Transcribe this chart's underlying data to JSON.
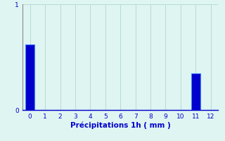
{
  "categories": [
    0,
    1,
    2,
    3,
    4,
    5,
    6,
    7,
    8,
    9,
    10,
    11,
    12
  ],
  "values": [
    0.62,
    0,
    0,
    0,
    0,
    0,
    0,
    0,
    0,
    0,
    0,
    0.35,
    0
  ],
  "bar_color": "#0000cc",
  "bar_edge_color": "#4488ff",
  "background_color": "#dff5f2",
  "grid_color": "#b0d8cc",
  "text_color": "#0000cc",
  "axis_color": "#888888",
  "xlabel": "Précipitations 1h ( mm )",
  "ylim": [
    0,
    1.0
  ],
  "xlim": [
    -0.5,
    12.5
  ],
  "yticks": [
    0,
    1
  ],
  "xticks": [
    0,
    1,
    2,
    3,
    4,
    5,
    6,
    7,
    8,
    9,
    10,
    11,
    12
  ],
  "xlabel_fontsize": 7.5,
  "tick_fontsize": 6.5,
  "bar_width": 0.6
}
